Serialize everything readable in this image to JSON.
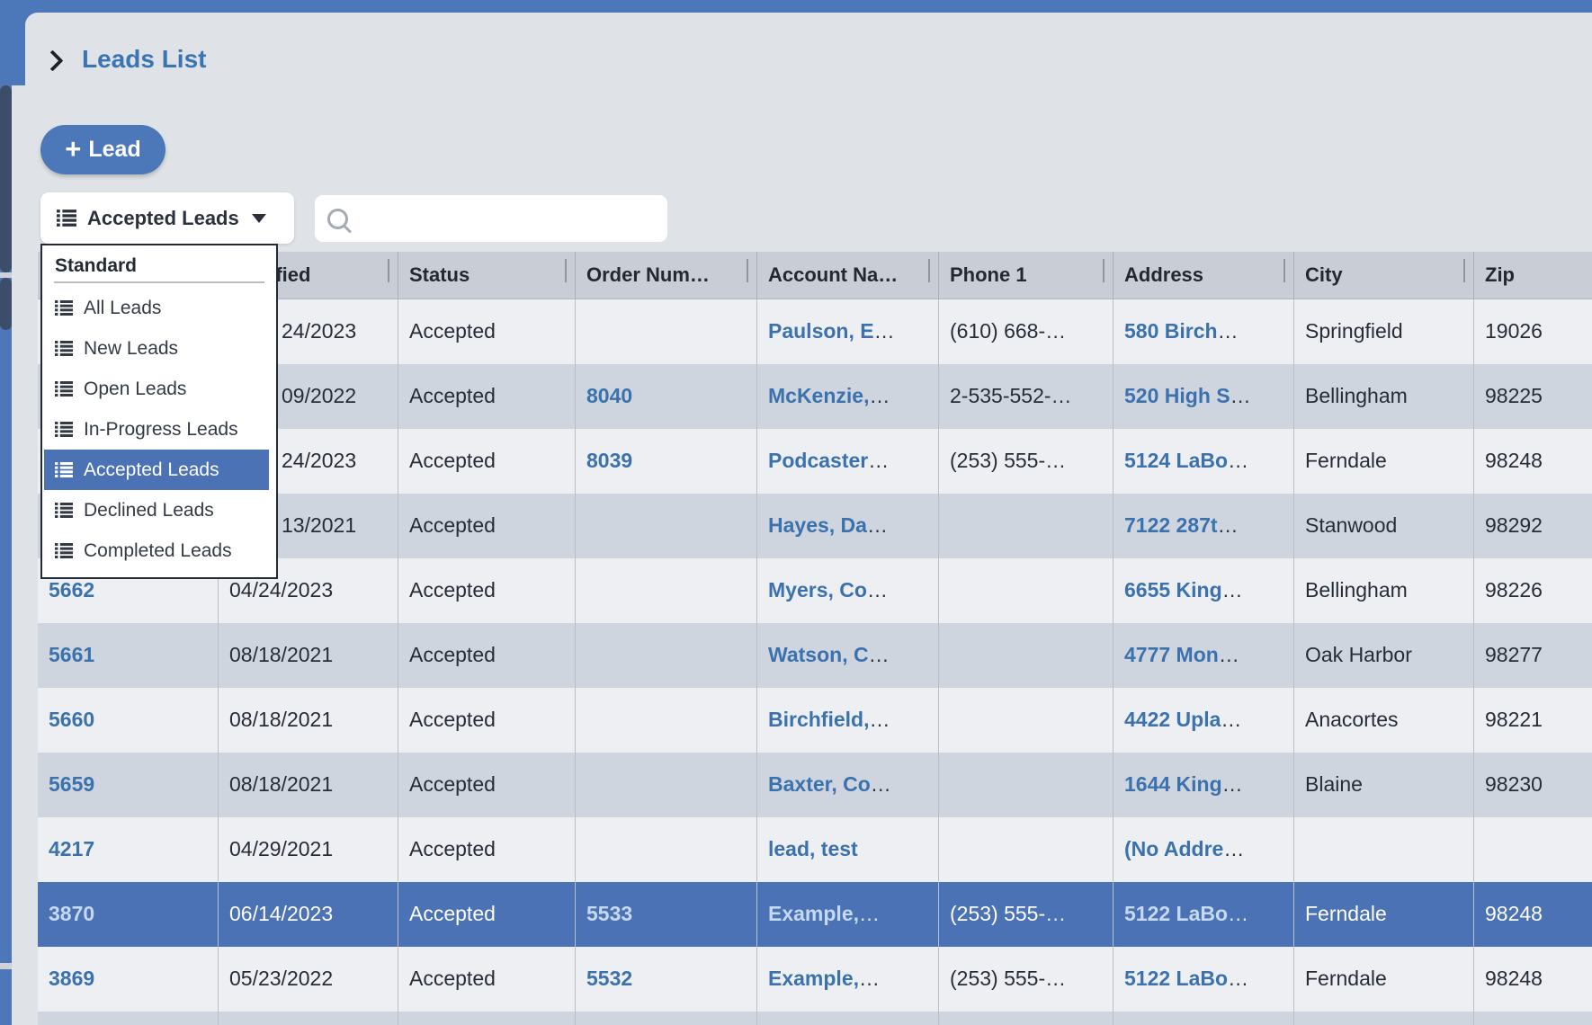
{
  "colors": {
    "frame_accent": "#4c78ba",
    "scrollbar_thumb": "#3c4d6a",
    "panel_bg": "#dfe2e6",
    "header_bg": "#c9cdd5",
    "row_light": "#edeff3",
    "row_dark": "#ced5df",
    "row_selected": "#4a72b4",
    "link_blue": "#3b72ae",
    "selected_link": "#c6d9f1",
    "title_blue": "#3a74b3"
  },
  "breadcrumb": {
    "title": "Leads List"
  },
  "toolbar": {
    "add_plus": "+",
    "add_label": "Lead",
    "filter_label": "Accepted Leads",
    "search_value": "",
    "search_placeholder": ""
  },
  "filter_menu": {
    "group_label": "Standard",
    "items": [
      {
        "label": "All Leads",
        "selected": false
      },
      {
        "label": "New Leads",
        "selected": false
      },
      {
        "label": "Open Leads",
        "selected": false
      },
      {
        "label": "In-Progress Leads",
        "selected": false
      },
      {
        "label": "Accepted Leads",
        "selected": true
      },
      {
        "label": "Declined Leads",
        "selected": false
      },
      {
        "label": "Completed Leads",
        "selected": false
      }
    ]
  },
  "table": {
    "columns": [
      {
        "name": "lead-number",
        "label": ""
      },
      {
        "name": "modified",
        "label": "Modified"
      },
      {
        "name": "status",
        "label": "Status"
      },
      {
        "name": "order-number",
        "label": "Order Num…"
      },
      {
        "name": "account-name",
        "label": "Account Na…"
      },
      {
        "name": "phone-1",
        "label": "Phone 1"
      },
      {
        "name": "address",
        "label": "Address"
      },
      {
        "name": "city",
        "label": "City"
      },
      {
        "name": "zip",
        "label": "Zip"
      }
    ],
    "rows": [
      {
        "id": "",
        "modified": "24/2023",
        "modified_clipped": true,
        "status": "Accepted",
        "order": "",
        "account": "Paulson, E",
        "account_trunc": true,
        "phone": "(610) 668-",
        "phone_trunc": true,
        "address": "580 Birch",
        "address_trunc": true,
        "city": "Springfield",
        "zip": "19026",
        "selected": false
      },
      {
        "id": "",
        "modified": "09/2022",
        "modified_clipped": true,
        "status": "Accepted",
        "order": "8040",
        "account": "McKenzie,",
        "account_trunc": true,
        "phone": "2-535-552-",
        "phone_trunc": true,
        "address": "520 High S",
        "address_trunc": true,
        "city": "Bellingham",
        "zip": "98225",
        "selected": false
      },
      {
        "id": "",
        "modified": "24/2023",
        "modified_clipped": true,
        "status": "Accepted",
        "order": "8039",
        "account": "Podcaster",
        "account_trunc": true,
        "phone": "(253) 555-",
        "phone_trunc": true,
        "address": "5124 LaBo",
        "address_trunc": true,
        "city": "Ferndale",
        "zip": "98248",
        "selected": false
      },
      {
        "id": "",
        "modified": "13/2021",
        "modified_clipped": true,
        "status": "Accepted",
        "order": "",
        "account": "Hayes, Da",
        "account_trunc": true,
        "phone": "",
        "address": "7122 287t",
        "address_trunc": true,
        "city": "Stanwood",
        "zip": "98292",
        "selected": false
      },
      {
        "id": "5662",
        "modified": "04/24/2023",
        "status": "Accepted",
        "order": "",
        "account": "Myers, Co",
        "account_trunc": true,
        "phone": "",
        "address": "6655 King",
        "address_trunc": true,
        "city": "Bellingham",
        "zip": "98226",
        "selected": false
      },
      {
        "id": "5661",
        "modified": "08/18/2021",
        "status": "Accepted",
        "order": "",
        "account": "Watson, C",
        "account_trunc": true,
        "phone": "",
        "address": "4777 Mon",
        "address_trunc": true,
        "city": "Oak Harbor",
        "zip": "98277",
        "selected": false
      },
      {
        "id": "5660",
        "modified": "08/18/2021",
        "status": "Accepted",
        "order": "",
        "account": "Birchfield,",
        "account_trunc": true,
        "phone": "",
        "address": "4422 Upla",
        "address_trunc": true,
        "city": "Anacortes",
        "zip": "98221",
        "selected": false
      },
      {
        "id": "5659",
        "modified": "08/18/2021",
        "status": "Accepted",
        "order": "",
        "account": "Baxter, Co",
        "account_trunc": true,
        "phone": "",
        "address": "1644 King",
        "address_trunc": true,
        "city": "Blaine",
        "zip": "98230",
        "selected": false
      },
      {
        "id": "4217",
        "modified": "04/29/2021",
        "status": "Accepted",
        "order": "",
        "account": "lead, test",
        "phone": "",
        "address": "(No Addre",
        "address_trunc": true,
        "city": "",
        "zip": "",
        "selected": false
      },
      {
        "id": "3870",
        "modified": "06/14/2023",
        "status": "Accepted",
        "order": "5533",
        "account": "Example,",
        "account_trunc": true,
        "phone": "(253) 555-",
        "phone_trunc": true,
        "address": "5122 LaBo",
        "address_trunc": true,
        "city": "Ferndale",
        "zip": "98248",
        "selected": true
      },
      {
        "id": "3869",
        "modified": "05/23/2022",
        "status": "Accepted",
        "order": "5532",
        "account": "Example,",
        "account_trunc": true,
        "phone": "(253) 555-",
        "phone_trunc": true,
        "address": "5122 LaBo",
        "address_trunc": true,
        "city": "Ferndale",
        "zip": "98248",
        "selected": false
      }
    ]
  }
}
